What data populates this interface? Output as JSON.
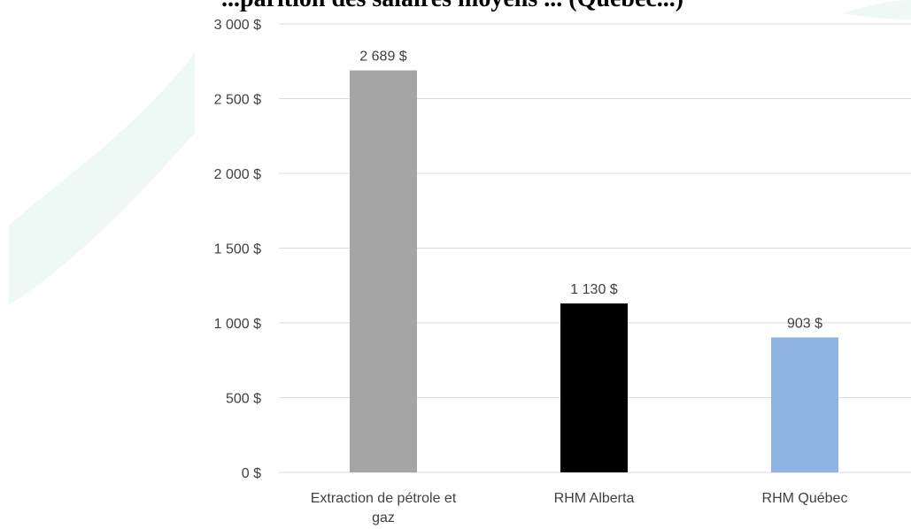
{
  "chart_data": {
    "type": "bar",
    "title": "...parition des salaires moyens ... (Québec...)",
    "categories": [
      "Extraction de pétrole et gaz",
      "RHM Alberta",
      "RHM Québec"
    ],
    "values": [
      2689,
      1130,
      903
    ],
    "value_labels": [
      "2 689 $",
      "1 130 $",
      "903 $"
    ],
    "y_tick_labels": [
      "0 $",
      "500 $",
      "1 000 $",
      "1 500 $",
      "2 000 $",
      "2 500 $",
      "3 000 $"
    ],
    "ylim": [
      0,
      3000
    ],
    "y_tick_step": 500,
    "xlabel": "",
    "ylabel": "",
    "grid": true,
    "legend": "none",
    "colors": [
      "#a5a5a5",
      "#000000",
      "#8fb4e3"
    ]
  },
  "watermark_color": "#eef8f5",
  "axis_text_color": "#404040",
  "grid_color": "#d9d9d9"
}
